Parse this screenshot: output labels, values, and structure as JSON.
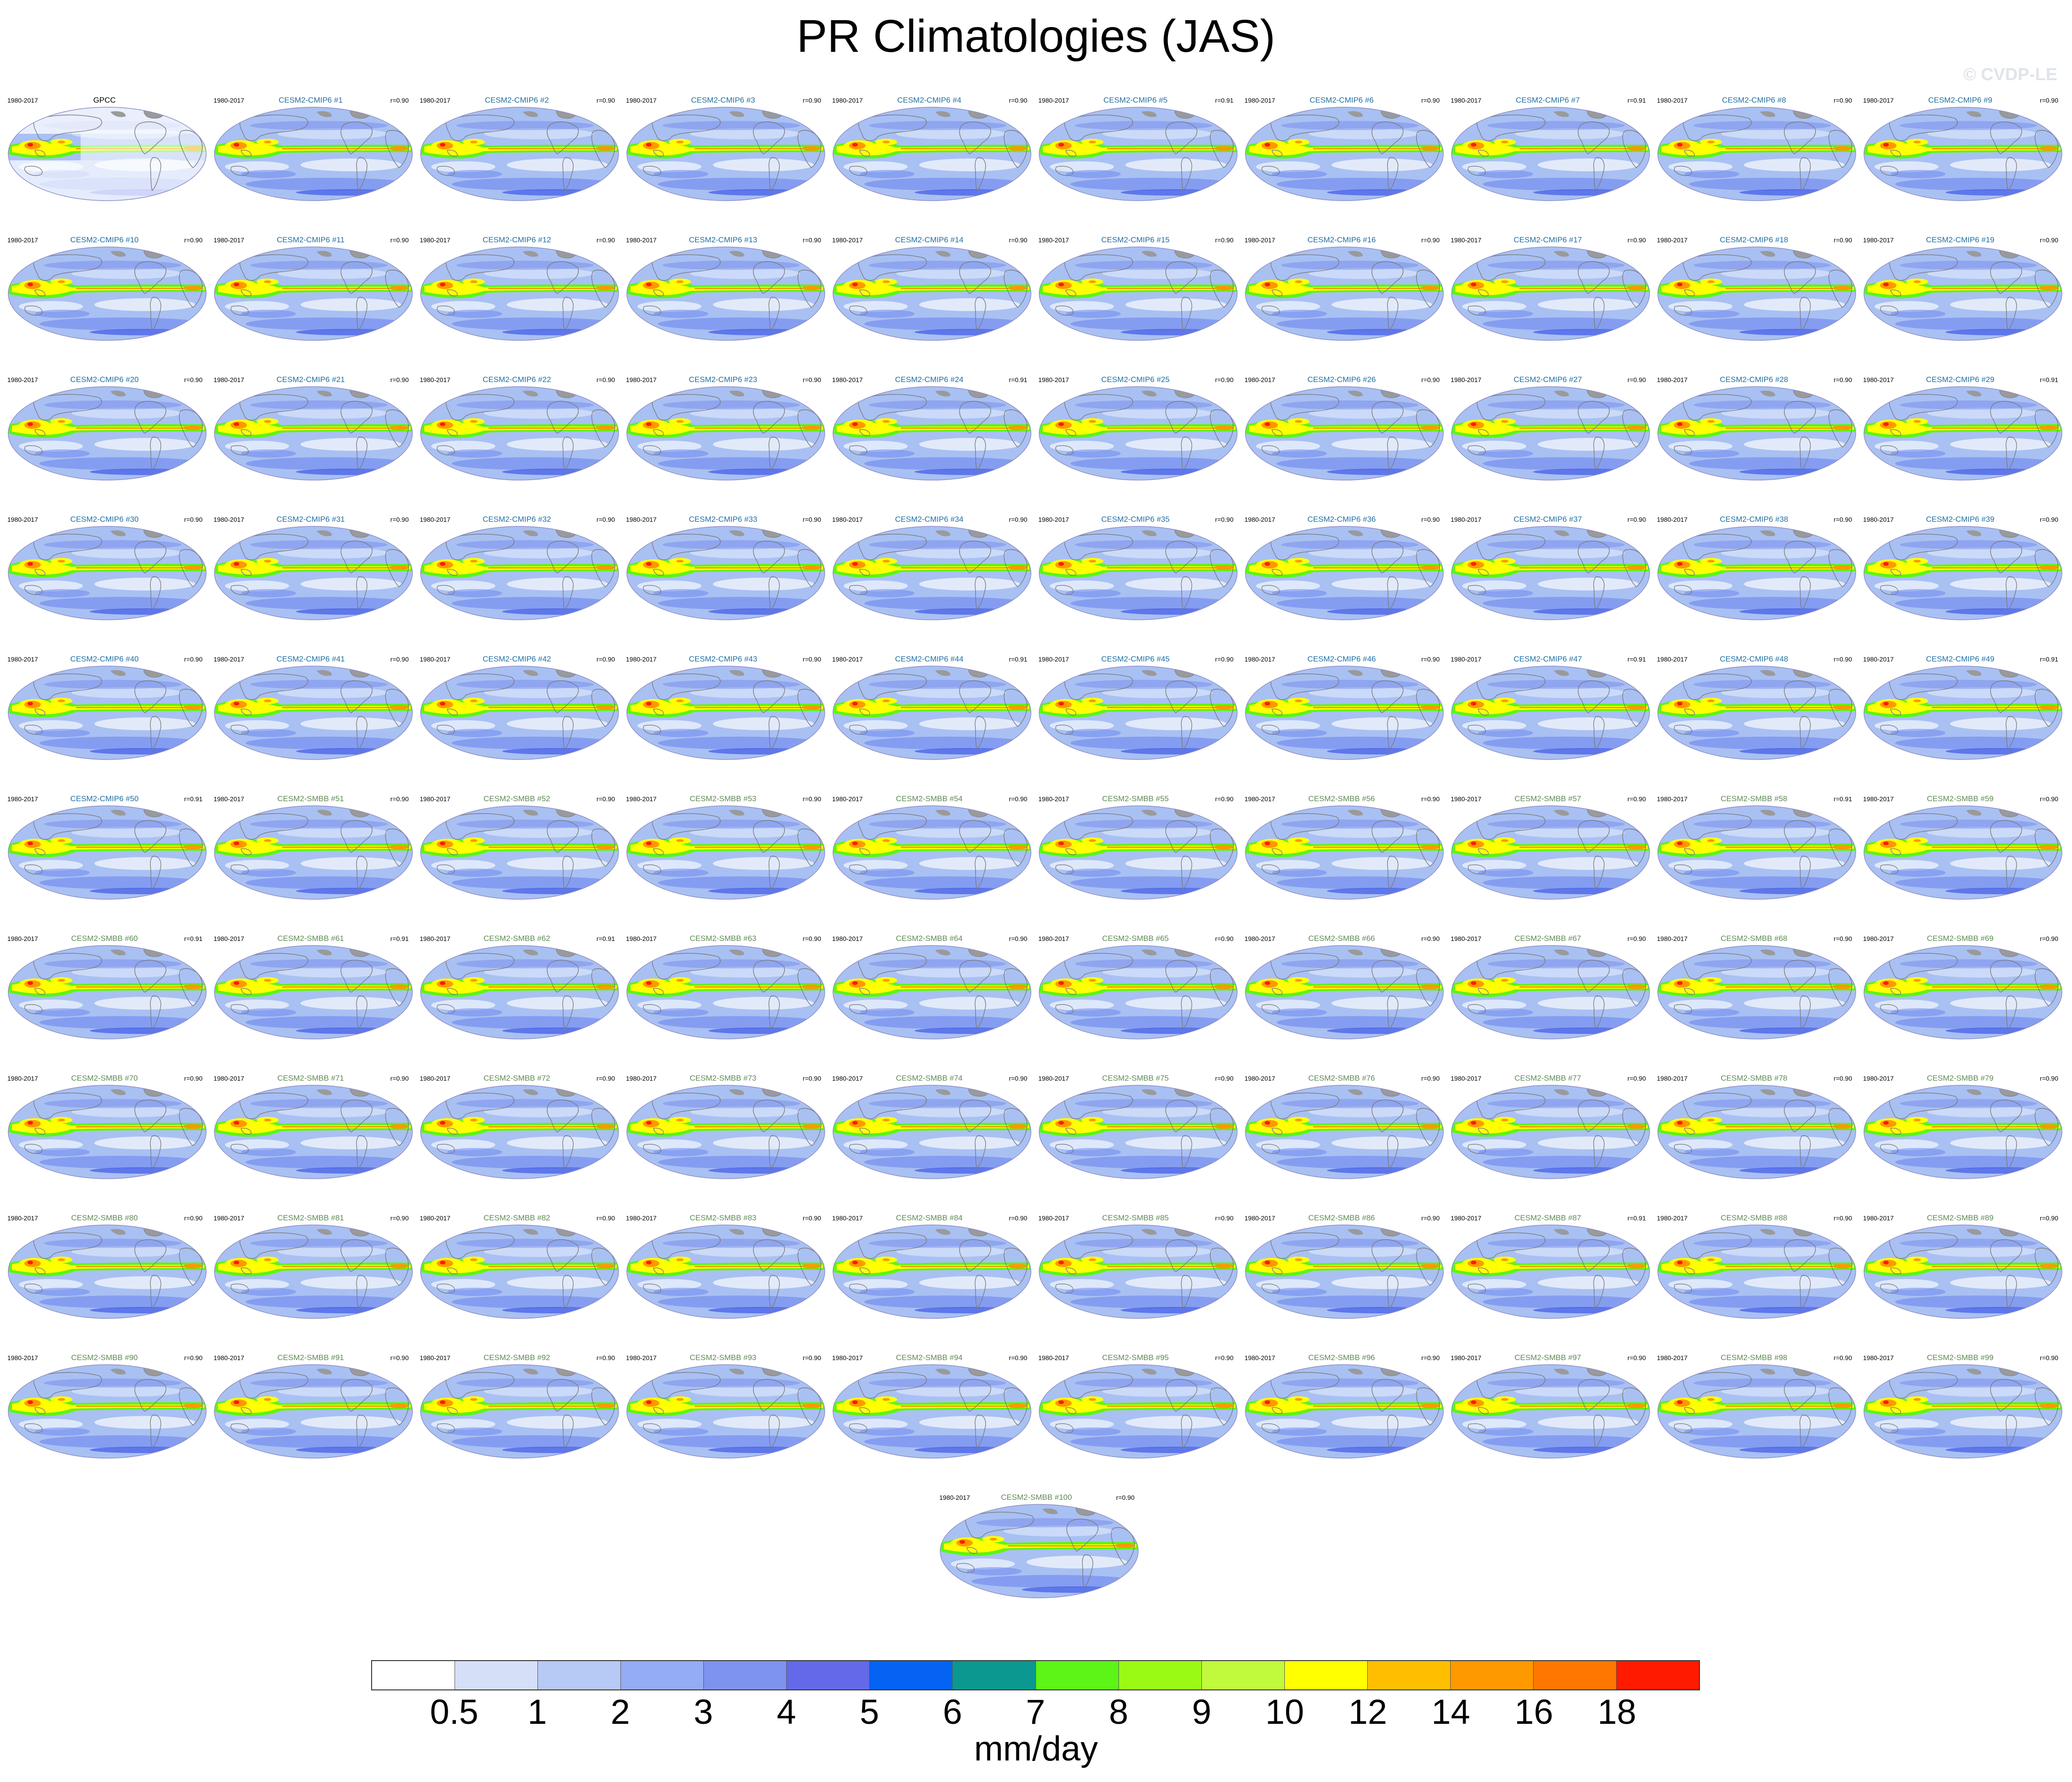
{
  "title": "PR Climatologies (JAS)",
  "watermark": "© CVDP-LE",
  "chart_data": {
    "type": "heatmap",
    "title": "PR Climatologies (JAS)",
    "period": "1980-2017",
    "observations": {
      "name": "GPCC",
      "years": "1980-2017"
    },
    "ensembles": [
      {
        "name": "CESM2-CMIP6",
        "members": "1-50",
        "label_color": "#1f6fa3"
      },
      {
        "name": "CESM2-SMBB",
        "members": "51-100",
        "label_color": "#5f8a55"
      }
    ],
    "panels": [
      {
        "name": "GPCC",
        "r": ""
      },
      {
        "name": "CESM2-CMIP6 #1",
        "r": "r=0.90"
      },
      {
        "name": "CESM2-CMIP6 #2",
        "r": "r=0.90"
      },
      {
        "name": "CESM2-CMIP6 #3",
        "r": "r=0.90"
      },
      {
        "name": "CESM2-CMIP6 #4",
        "r": "r=0.90"
      },
      {
        "name": "CESM2-CMIP6 #5",
        "r": "r=0.91"
      },
      {
        "name": "CESM2-CMIP6 #6",
        "r": "r=0.90"
      },
      {
        "name": "CESM2-CMIP6 #7",
        "r": "r=0.91"
      },
      {
        "name": "CESM2-CMIP6 #8",
        "r": "r=0.90"
      },
      {
        "name": "CESM2-CMIP6 #9",
        "r": "r=0.90"
      },
      {
        "name": "CESM2-CMIP6 #10",
        "r": "r=0.90"
      },
      {
        "name": "CESM2-CMIP6 #11",
        "r": "r=0.90"
      },
      {
        "name": "CESM2-CMIP6 #12",
        "r": "r=0.90"
      },
      {
        "name": "CESM2-CMIP6 #13",
        "r": "r=0.90"
      },
      {
        "name": "CESM2-CMIP6 #14",
        "r": "r=0.90"
      },
      {
        "name": "CESM2-CMIP6 #15",
        "r": "r=0.90"
      },
      {
        "name": "CESM2-CMIP6 #16",
        "r": "r=0.90"
      },
      {
        "name": "CESM2-CMIP6 #17",
        "r": "r=0.90"
      },
      {
        "name": "CESM2-CMIP6 #18",
        "r": "r=0.90"
      },
      {
        "name": "CESM2-CMIP6 #19",
        "r": "r=0.90"
      },
      {
        "name": "CESM2-CMIP6 #20",
        "r": "r=0.90"
      },
      {
        "name": "CESM2-CMIP6 #21",
        "r": "r=0.90"
      },
      {
        "name": "CESM2-CMIP6 #22",
        "r": "r=0.90"
      },
      {
        "name": "CESM2-CMIP6 #23",
        "r": "r=0.90"
      },
      {
        "name": "CESM2-CMIP6 #24",
        "r": "r=0.91"
      },
      {
        "name": "CESM2-CMIP6 #25",
        "r": "r=0.90"
      },
      {
        "name": "CESM2-CMIP6 #26",
        "r": "r=0.90"
      },
      {
        "name": "CESM2-CMIP6 #27",
        "r": "r=0.90"
      },
      {
        "name": "CESM2-CMIP6 #28",
        "r": "r=0.90"
      },
      {
        "name": "CESM2-CMIP6 #29",
        "r": "r=0.91"
      },
      {
        "name": "CESM2-CMIP6 #30",
        "r": "r=0.90"
      },
      {
        "name": "CESM2-CMIP6 #31",
        "r": "r=0.90"
      },
      {
        "name": "CESM2-CMIP6 #32",
        "r": "r=0.90"
      },
      {
        "name": "CESM2-CMIP6 #33",
        "r": "r=0.90"
      },
      {
        "name": "CESM2-CMIP6 #34",
        "r": "r=0.90"
      },
      {
        "name": "CESM2-CMIP6 #35",
        "r": "r=0.90"
      },
      {
        "name": "CESM2-CMIP6 #36",
        "r": "r=0.90"
      },
      {
        "name": "CESM2-CMIP6 #37",
        "r": "r=0.90"
      },
      {
        "name": "CESM2-CMIP6 #38",
        "r": "r=0.90"
      },
      {
        "name": "CESM2-CMIP6 #39",
        "r": "r=0.90"
      },
      {
        "name": "CESM2-CMIP6 #40",
        "r": "r=0.90"
      },
      {
        "name": "CESM2-CMIP6 #41",
        "r": "r=0.90"
      },
      {
        "name": "CESM2-CMIP6 #42",
        "r": "r=0.90"
      },
      {
        "name": "CESM2-CMIP6 #43",
        "r": "r=0.90"
      },
      {
        "name": "CESM2-CMIP6 #44",
        "r": "r=0.91"
      },
      {
        "name": "CESM2-CMIP6 #45",
        "r": "r=0.90"
      },
      {
        "name": "CESM2-CMIP6 #46",
        "r": "r=0.90"
      },
      {
        "name": "CESM2-CMIP6 #47",
        "r": "r=0.91"
      },
      {
        "name": "CESM2-CMIP6 #48",
        "r": "r=0.90"
      },
      {
        "name": "CESM2-CMIP6 #49",
        "r": "r=0.91"
      },
      {
        "name": "CESM2-CMIP6 #50",
        "r": "r=0.91"
      },
      {
        "name": "CESM2-SMBB #51",
        "r": "r=0.90"
      },
      {
        "name": "CESM2-SMBB #52",
        "r": "r=0.90"
      },
      {
        "name": "CESM2-SMBB #53",
        "r": "r=0.90"
      },
      {
        "name": "CESM2-SMBB #54",
        "r": "r=0.90"
      },
      {
        "name": "CESM2-SMBB #55",
        "r": "r=0.90"
      },
      {
        "name": "CESM2-SMBB #56",
        "r": "r=0.90"
      },
      {
        "name": "CESM2-SMBB #57",
        "r": "r=0.90"
      },
      {
        "name": "CESM2-SMBB #58",
        "r": "r=0.91"
      },
      {
        "name": "CESM2-SMBB #59",
        "r": "r=0.90"
      },
      {
        "name": "CESM2-SMBB #60",
        "r": "r=0.91"
      },
      {
        "name": "CESM2-SMBB #61",
        "r": "r=0.91"
      },
      {
        "name": "CESM2-SMBB #62",
        "r": "r=0.91"
      },
      {
        "name": "CESM2-SMBB #63",
        "r": "r=0.90"
      },
      {
        "name": "CESM2-SMBB #64",
        "r": "r=0.90"
      },
      {
        "name": "CESM2-SMBB #65",
        "r": "r=0.90"
      },
      {
        "name": "CESM2-SMBB #66",
        "r": "r=0.90"
      },
      {
        "name": "CESM2-SMBB #67",
        "r": "r=0.90"
      },
      {
        "name": "CESM2-SMBB #68",
        "r": "r=0.90"
      },
      {
        "name": "CESM2-SMBB #69",
        "r": "r=0.90"
      },
      {
        "name": "CESM2-SMBB #70",
        "r": "r=0.90"
      },
      {
        "name": "CESM2-SMBB #71",
        "r": "r=0.90"
      },
      {
        "name": "CESM2-SMBB #72",
        "r": "r=0.90"
      },
      {
        "name": "CESM2-SMBB #73",
        "r": "r=0.90"
      },
      {
        "name": "CESM2-SMBB #74",
        "r": "r=0.90"
      },
      {
        "name": "CESM2-SMBB #75",
        "r": "r=0.90"
      },
      {
        "name": "CESM2-SMBB #76",
        "r": "r=0.90"
      },
      {
        "name": "CESM2-SMBB #77",
        "r": "r=0.90"
      },
      {
        "name": "CESM2-SMBB #78",
        "r": "r=0.90"
      },
      {
        "name": "CESM2-SMBB #79",
        "r": "r=0.90"
      },
      {
        "name": "CESM2-SMBB #80",
        "r": "r=0.90"
      },
      {
        "name": "CESM2-SMBB #81",
        "r": "r=0.90"
      },
      {
        "name": "CESM2-SMBB #82",
        "r": "r=0.90"
      },
      {
        "name": "CESM2-SMBB #83",
        "r": "r=0.90"
      },
      {
        "name": "CESM2-SMBB #84",
        "r": "r=0.90"
      },
      {
        "name": "CESM2-SMBB #85",
        "r": "r=0.90"
      },
      {
        "name": "CESM2-SMBB #86",
        "r": "r=0.90"
      },
      {
        "name": "CESM2-SMBB #87",
        "r": "r=0.91"
      },
      {
        "name": "CESM2-SMBB #88",
        "r": "r=0.90"
      },
      {
        "name": "CESM2-SMBB #89",
        "r": "r=0.90"
      },
      {
        "name": "CESM2-SMBB #90",
        "r": "r=0.90"
      },
      {
        "name": "CESM2-SMBB #91",
        "r": "r=0.90"
      },
      {
        "name": "CESM2-SMBB #92",
        "r": "r=0.90"
      },
      {
        "name": "CESM2-SMBB #93",
        "r": "r=0.90"
      },
      {
        "name": "CESM2-SMBB #94",
        "r": "r=0.90"
      },
      {
        "name": "CESM2-SMBB #95",
        "r": "r=0.90"
      },
      {
        "name": "CESM2-SMBB #96",
        "r": "r=0.90"
      },
      {
        "name": "CESM2-SMBB #97",
        "r": "r=0.90"
      },
      {
        "name": "CESM2-SMBB #98",
        "r": "r=0.90"
      },
      {
        "name": "CESM2-SMBB #99",
        "r": "r=0.90"
      },
      {
        "name": "CESM2-SMBB #100",
        "r": "r=0.90"
      }
    ],
    "colorbar": {
      "levels": [
        "0.5",
        "1",
        "2",
        "3",
        "4",
        "5",
        "6",
        "7",
        "8",
        "9",
        "10",
        "12",
        "14",
        "16",
        "18"
      ],
      "colors": [
        "#ffffff",
        "#d5dff8",
        "#b7c9f5",
        "#93acf3",
        "#7d93ee",
        "#6369e8",
        "#0563f3",
        "#0b9891",
        "#5cf515",
        "#9bfa14",
        "#c1fa3c",
        "#ffff00",
        "#ffbf00",
        "#ff9900",
        "#ff7700",
        "#ff1a00"
      ],
      "units": "mm/day"
    },
    "map_colors": {
      "ocean_base": "#a9c0f3",
      "dry_zone": "#e8eefb",
      "wet_band": "#6e86ee",
      "itcz_outer": "#5cf515",
      "itcz_mid": "#ffff00",
      "itcz_core": "#ff9900",
      "warm_pool_peak": "#ff1a00",
      "coast": "#7a7a7a",
      "greenland": "#9a9a9a"
    }
  }
}
